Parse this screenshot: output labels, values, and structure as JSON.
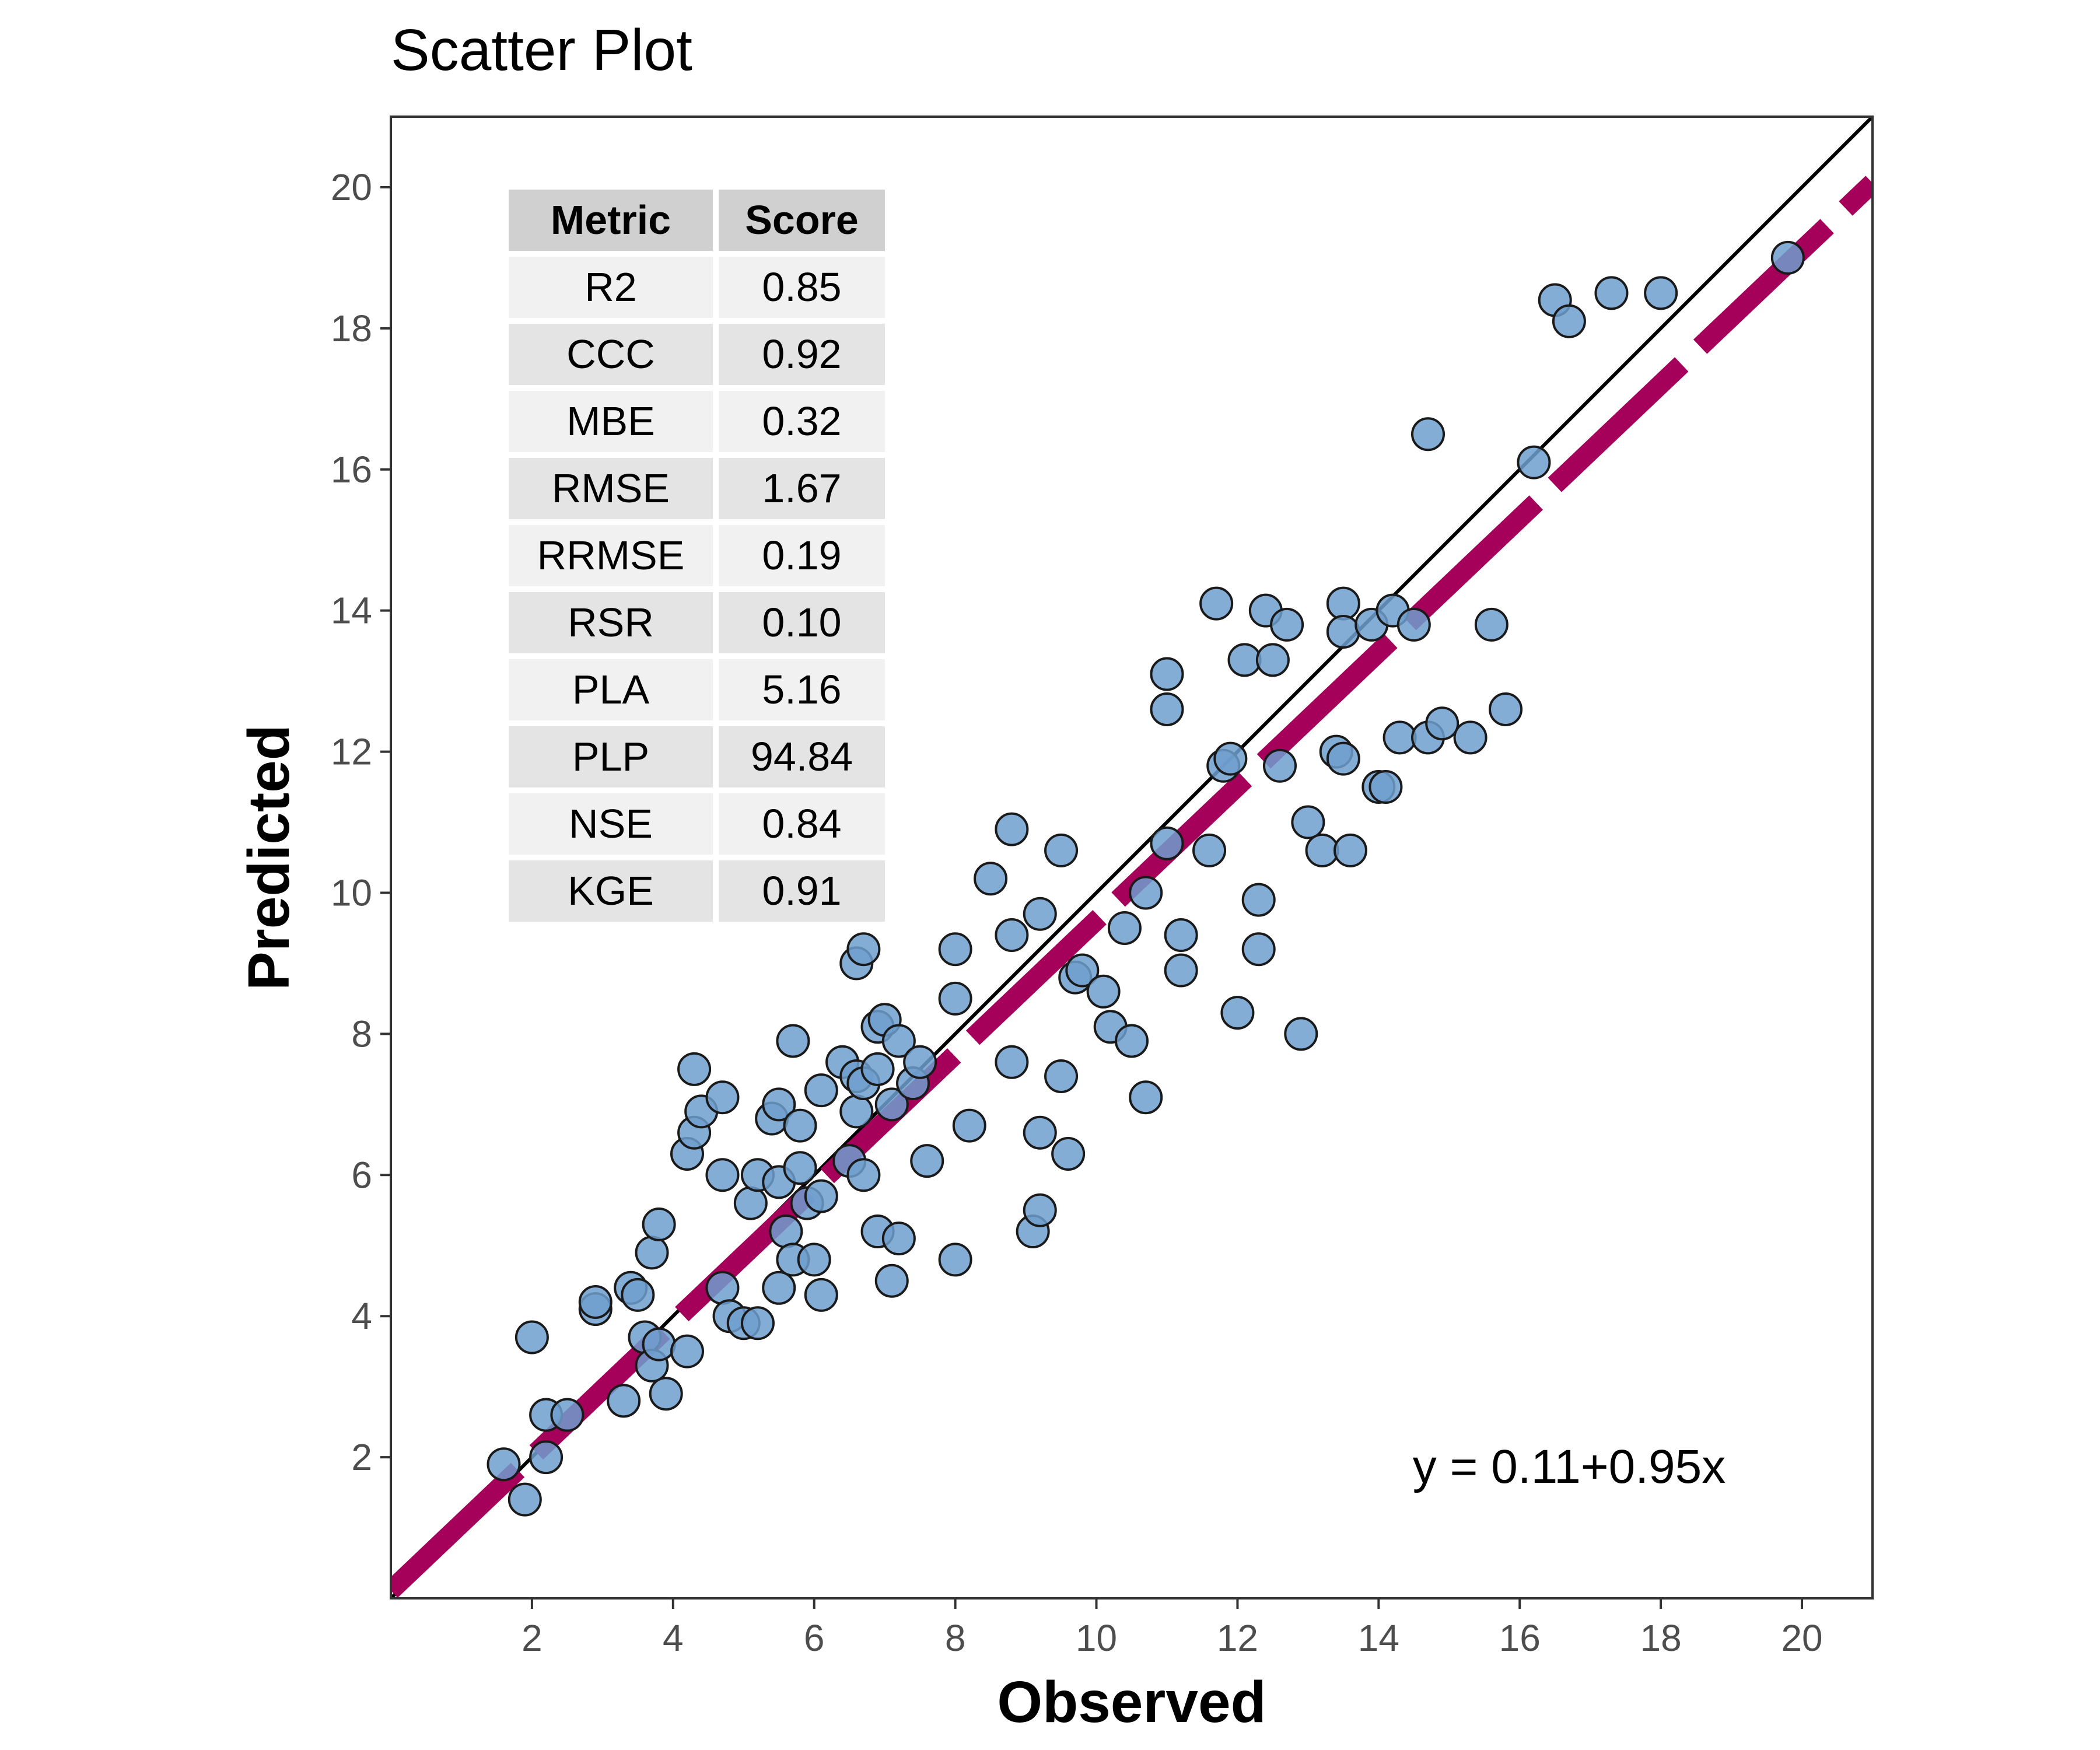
{
  "chart_data": {
    "type": "scatter",
    "title": "Scatter Plot",
    "xlabel": "Observed",
    "ylabel": "Predicted",
    "xlim": [
      0,
      21
    ],
    "ylim": [
      0,
      21
    ],
    "xticks": [
      2,
      4,
      6,
      8,
      10,
      12,
      14,
      16,
      18,
      20
    ],
    "yticks": [
      2,
      4,
      6,
      8,
      10,
      12,
      14,
      16,
      18,
      20
    ],
    "grid": false,
    "points": [
      [
        1.6,
        1.9
      ],
      [
        1.9,
        1.4
      ],
      [
        2.0,
        3.7
      ],
      [
        2.2,
        2.0
      ],
      [
        2.2,
        2.6
      ],
      [
        2.5,
        2.6
      ],
      [
        2.9,
        4.1
      ],
      [
        2.9,
        4.2
      ],
      [
        3.3,
        2.8
      ],
      [
        3.4,
        4.4
      ],
      [
        3.5,
        4.3
      ],
      [
        3.6,
        3.7
      ],
      [
        3.7,
        3.3
      ],
      [
        3.8,
        3.6
      ],
      [
        3.7,
        4.9
      ],
      [
        3.8,
        5.3
      ],
      [
        3.9,
        2.9
      ],
      [
        4.2,
        3.5
      ],
      [
        4.2,
        6.3
      ],
      [
        4.3,
        7.5
      ],
      [
        4.3,
        6.6
      ],
      [
        4.4,
        6.9
      ],
      [
        4.7,
        4.4
      ],
      [
        4.7,
        6.0
      ],
      [
        4.7,
        7.1
      ],
      [
        4.8,
        4.0
      ],
      [
        5.0,
        3.9
      ],
      [
        5.1,
        5.6
      ],
      [
        5.2,
        3.9
      ],
      [
        5.2,
        6.0
      ],
      [
        5.4,
        6.8
      ],
      [
        5.5,
        4.4
      ],
      [
        5.5,
        5.9
      ],
      [
        5.6,
        5.2
      ],
      [
        5.5,
        7.0
      ],
      [
        5.7,
        4.8
      ],
      [
        5.7,
        7.9
      ],
      [
        5.8,
        6.1
      ],
      [
        5.8,
        6.7
      ],
      [
        5.9,
        5.6
      ],
      [
        6.0,
        4.8
      ],
      [
        6.1,
        4.3
      ],
      [
        6.1,
        5.7
      ],
      [
        6.1,
        7.2
      ],
      [
        6.4,
        7.6
      ],
      [
        6.5,
        6.2
      ],
      [
        6.6,
        6.9
      ],
      [
        6.6,
        7.4
      ],
      [
        6.7,
        6.0
      ],
      [
        6.7,
        7.3
      ],
      [
        6.6,
        9.0
      ],
      [
        6.7,
        9.2
      ],
      [
        6.9,
        5.2
      ],
      [
        6.9,
        7.5
      ],
      [
        6.9,
        8.1
      ],
      [
        7.0,
        8.2
      ],
      [
        7.1,
        4.5
      ],
      [
        7.1,
        7.0
      ],
      [
        7.2,
        5.1
      ],
      [
        7.2,
        7.9
      ],
      [
        7.4,
        7.3
      ],
      [
        7.5,
        7.6
      ],
      [
        7.6,
        6.2
      ],
      [
        8.0,
        9.2
      ],
      [
        8.0,
        8.5
      ],
      [
        8.0,
        4.8
      ],
      [
        8.2,
        6.7
      ],
      [
        8.5,
        10.2
      ],
      [
        8.8,
        10.9
      ],
      [
        8.8,
        9.4
      ],
      [
        8.8,
        7.6
      ],
      [
        9.1,
        5.2
      ],
      [
        9.2,
        5.5
      ],
      [
        9.2,
        6.6
      ],
      [
        9.2,
        9.7
      ],
      [
        9.5,
        7.4
      ],
      [
        9.5,
        10.6
      ],
      [
        9.6,
        6.3
      ],
      [
        9.7,
        8.8
      ],
      [
        9.8,
        8.9
      ],
      [
        10.1,
        8.6
      ],
      [
        10.2,
        8.1
      ],
      [
        10.4,
        9.5
      ],
      [
        10.5,
        7.9
      ],
      [
        10.7,
        7.1
      ],
      [
        10.7,
        10.0
      ],
      [
        11.0,
        13.1
      ],
      [
        11.0,
        12.6
      ],
      [
        11.0,
        10.7
      ],
      [
        11.2,
        9.4
      ],
      [
        11.2,
        8.9
      ],
      [
        11.6,
        10.6
      ],
      [
        11.7,
        14.1
      ],
      [
        11.8,
        11.8
      ],
      [
        11.9,
        11.9
      ],
      [
        12.0,
        8.3
      ],
      [
        12.1,
        13.3
      ],
      [
        12.3,
        9.9
      ],
      [
        12.3,
        9.2
      ],
      [
        12.4,
        14.0
      ],
      [
        12.5,
        13.3
      ],
      [
        12.6,
        11.8
      ],
      [
        12.7,
        13.8
      ],
      [
        12.9,
        8.0
      ],
      [
        13.0,
        11.0
      ],
      [
        13.2,
        10.6
      ],
      [
        13.4,
        12.0
      ],
      [
        13.5,
        14.1
      ],
      [
        13.5,
        13.7
      ],
      [
        13.5,
        11.9
      ],
      [
        13.6,
        10.6
      ],
      [
        13.9,
        13.8
      ],
      [
        14.0,
        11.5
      ],
      [
        14.1,
        11.5
      ],
      [
        14.2,
        14.0
      ],
      [
        14.3,
        12.2
      ],
      [
        14.5,
        13.8
      ],
      [
        14.7,
        12.2
      ],
      [
        14.7,
        16.5
      ],
      [
        14.9,
        12.4
      ],
      [
        15.3,
        12.2
      ],
      [
        15.6,
        13.8
      ],
      [
        15.8,
        12.6
      ],
      [
        16.2,
        16.1
      ],
      [
        16.5,
        18.4
      ],
      [
        16.7,
        18.1
      ],
      [
        17.3,
        18.5
      ],
      [
        18.0,
        18.5
      ],
      [
        19.8,
        19.0
      ]
    ],
    "reference_line": "1:1",
    "fit_line": {
      "intercept": 0.11,
      "slope": 0.95
    },
    "equation_label": "y = 0.11+0.95x",
    "table": {
      "headers": [
        "Metric",
        "Score"
      ],
      "rows": [
        [
          "R2",
          "0.85"
        ],
        [
          "CCC",
          "0.92"
        ],
        [
          "MBE",
          "0.32"
        ],
        [
          "RMSE",
          "1.67"
        ],
        [
          "RRMSE",
          "0.19"
        ],
        [
          "RSR",
          "0.10"
        ],
        [
          "PLA",
          "5.16"
        ],
        [
          "PLP",
          "94.84"
        ],
        [
          "NSE",
          "0.84"
        ],
        [
          "KGE",
          "0.91"
        ]
      ]
    },
    "colors": {
      "point_fill": "#6f9fcf",
      "point_stroke": "#1a1a1a",
      "fit_line": "#a5005a",
      "reference_line": "#000000",
      "table_header": "#d0d0d0",
      "table_row_odd": "#f1f1f1",
      "table_row_even": "#e4e4e4"
    }
  }
}
